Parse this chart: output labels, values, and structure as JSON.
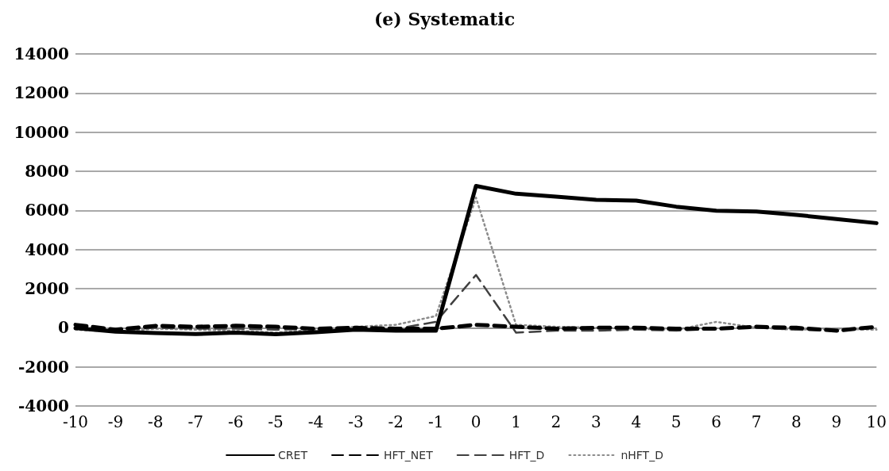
{
  "chart_data": {
    "type": "line",
    "title": "(e) Systematic",
    "categories": [
      "-10",
      "-9",
      "-8",
      "-7",
      "-6",
      "-5",
      "-4",
      "-3",
      "-2",
      "-1",
      "0",
      "1",
      "2",
      "3",
      "4",
      "5",
      "6",
      "7",
      "8",
      "9",
      "10"
    ],
    "series": [
      {
        "name": "CRET",
        "color": "#000000",
        "line_style": "solid",
        "values": [
          -20,
          -200,
          -270,
          -320,
          -250,
          -330,
          -230,
          -100,
          -150,
          -150,
          7250,
          6850,
          6700,
          6540,
          6500,
          6190,
          5980,
          5940,
          5770,
          5560,
          5350
        ]
      },
      {
        "name": "HFT_NET",
        "color": "#000000",
        "line_style": "dashed",
        "values": [
          150,
          -100,
          100,
          50,
          100,
          50,
          -50,
          0,
          -50,
          -50,
          150,
          50,
          -50,
          0,
          0,
          -50,
          -50,
          50,
          0,
          -150,
          50
        ]
      },
      {
        "name": "HFT_D",
        "color": "#404040",
        "line_style": "dashed",
        "values": [
          -50,
          -150,
          0,
          -50,
          -50,
          -100,
          -50,
          0,
          -50,
          300,
          2700,
          -250,
          -150,
          -150,
          -100,
          -150,
          -50,
          0,
          -100,
          -150,
          0
        ]
      },
      {
        "name": "nHFT_D",
        "color": "#8c8c8c",
        "line_style": "dotted",
        "values": [
          -100,
          -200,
          -50,
          -100,
          -150,
          -250,
          -100,
          50,
          150,
          600,
          6650,
          150,
          50,
          0,
          -50,
          -100,
          300,
          0,
          -100,
          -50,
          -100
        ]
      }
    ],
    "ylim": [
      -4000,
      14000
    ],
    "yticks": [
      -4000,
      -2000,
      0,
      2000,
      4000,
      6000,
      8000,
      10000,
      12000,
      14000
    ],
    "grid": "y",
    "legend": "bottom",
    "marker": "none"
  }
}
